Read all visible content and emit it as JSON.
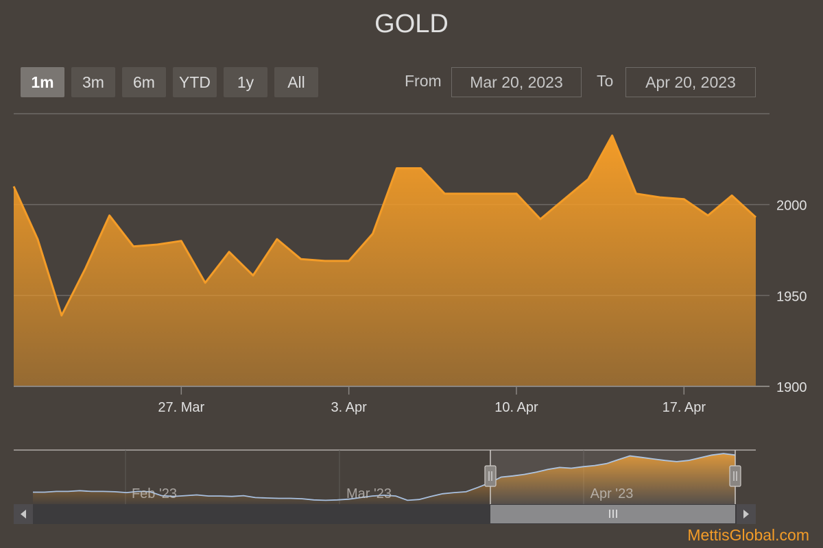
{
  "title": "GOLD",
  "range_selector": {
    "buttons": [
      {
        "label": "1m",
        "active": true
      },
      {
        "label": "3m",
        "active": false
      },
      {
        "label": "6m",
        "active": false
      },
      {
        "label": "YTD",
        "active": false
      },
      {
        "label": "1y",
        "active": false
      },
      {
        "label": "All",
        "active": false
      }
    ],
    "from_label": "From",
    "from_value": "Mar 20, 2023",
    "to_label": "To",
    "to_value": "Apr 20, 2023"
  },
  "brand": "MettisGlobal.com",
  "colors": {
    "series": "#f39c28",
    "navigator_line": "#a8c0e0",
    "background": "#47413c"
  },
  "chart_data": {
    "type": "area",
    "title": "GOLD",
    "x_tick_labels": [
      "27. Mar",
      "3. Apr",
      "10. Apr",
      "17. Apr"
    ],
    "y_tick_labels": [
      "1900",
      "1950",
      "2000"
    ],
    "ylim": [
      1900,
      2050
    ],
    "y_axis_position": "right",
    "grid": true,
    "series": [
      {
        "x": [
          "2023-03-20",
          "2023-03-21",
          "2023-03-22",
          "2023-03-23",
          "2023-03-24",
          "2023-03-25",
          "2023-03-26",
          "2023-03-27",
          "2023-03-28",
          "2023-03-29",
          "2023-03-30",
          "2023-03-31",
          "2023-04-01",
          "2023-04-02",
          "2023-04-03",
          "2023-04-04",
          "2023-04-05",
          "2023-04-06",
          "2023-04-07",
          "2023-04-08",
          "2023-04-09",
          "2023-04-10",
          "2023-04-11",
          "2023-04-12",
          "2023-04-13",
          "2023-04-14",
          "2023-04-15",
          "2023-04-16",
          "2023-04-17",
          "2023-04-18",
          "2023-04-19",
          "2023-04-20"
        ],
        "values": [
          2010,
          1981,
          1939,
          1965,
          1994,
          1977,
          1978,
          1980,
          1957,
          1974,
          1961,
          1981,
          1970,
          1969,
          1969,
          1984,
          2020,
          2020,
          2006,
          2006,
          2006,
          2006,
          1992,
          2003,
          2014,
          2038,
          2006,
          2004,
          2003,
          1994,
          2005,
          1993
        ]
      }
    ],
    "navigator": {
      "x_tick_labels": [
        "Feb '23",
        "Mar '23",
        "Apr '23"
      ],
      "selected_range": [
        "Mar 20, 2023",
        "Apr 20, 2023"
      ],
      "values": [
        1926,
        1926,
        1928,
        1928,
        1930,
        1928,
        1928,
        1927,
        1925,
        1928,
        1927,
        1917,
        1915,
        1917,
        1919,
        1916,
        1916,
        1915,
        1917,
        1912,
        1911,
        1910,
        1910,
        1909,
        1906,
        1905,
        1906,
        1908,
        1912,
        1916,
        1918,
        1916,
        1905,
        1907,
        1915,
        1922,
        1925,
        1927,
        1938,
        1950,
        1965,
        1968,
        1972,
        1978,
        1985,
        1990,
        1988,
        1992,
        1995,
        2000,
        2010,
        2020,
        2016,
        2012,
        2008,
        2005,
        2008,
        2015,
        2022,
        2026,
        2022
      ]
    }
  }
}
